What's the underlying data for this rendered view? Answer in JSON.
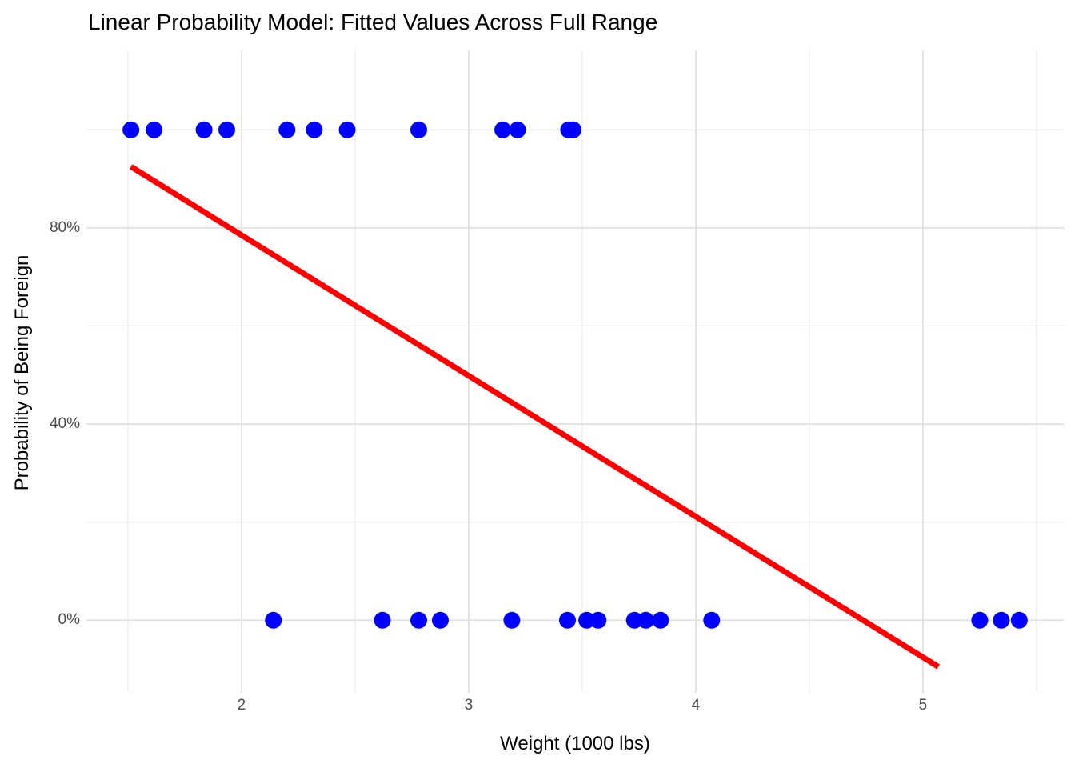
{
  "chart_data": {
    "type": "scatter",
    "title": "Linear Probability Model: Fitted Values Across Full Range",
    "xlabel": "Weight (1000 lbs)",
    "ylabel": "Probability of Being Foreign",
    "xlim": [
      1.317,
      5.62
    ],
    "ylim": [
      -0.148,
      1.162
    ],
    "grid": true,
    "legend": false,
    "background": "#ffffff",
    "grid_major_color": "#e3e3e3",
    "grid_minor_color": "#ececec",
    "tick_text_color": "#4d4d4d",
    "x_major_ticks": [
      {
        "value": 2,
        "label": "2"
      },
      {
        "value": 3,
        "label": "3"
      },
      {
        "value": 4,
        "label": "4"
      },
      {
        "value": 5,
        "label": "5"
      }
    ],
    "x_minor_ticks": [
      1.5,
      2.5,
      3.5,
      4.5,
      5.5
    ],
    "y_major_ticks": [
      {
        "value": 0.0,
        "label": "0%"
      },
      {
        "value": 0.4,
        "label": "40%"
      },
      {
        "value": 0.8,
        "label": "80%"
      }
    ],
    "y_minor_ticks": [
      0.2,
      0.6,
      1.0
    ],
    "series": [
      {
        "name": "observations",
        "kind": "points",
        "color": "#0000ff",
        "point_radius": 10.5,
        "points": [
          {
            "x": 1.513,
            "y": 1
          },
          {
            "x": 1.615,
            "y": 1
          },
          {
            "x": 1.835,
            "y": 1
          },
          {
            "x": 1.935,
            "y": 1
          },
          {
            "x": 2.2,
            "y": 1
          },
          {
            "x": 2.32,
            "y": 1
          },
          {
            "x": 2.465,
            "y": 1
          },
          {
            "x": 2.78,
            "y": 1
          },
          {
            "x": 3.15,
            "y": 1
          },
          {
            "x": 3.215,
            "y": 1
          },
          {
            "x": 3.44,
            "y": 1
          },
          {
            "x": 3.46,
            "y": 1
          },
          {
            "x": 2.14,
            "y": 0
          },
          {
            "x": 2.62,
            "y": 0
          },
          {
            "x": 2.78,
            "y": 0
          },
          {
            "x": 2.875,
            "y": 0
          },
          {
            "x": 3.19,
            "y": 0
          },
          {
            "x": 3.435,
            "y": 0
          },
          {
            "x": 3.52,
            "y": 0
          },
          {
            "x": 3.57,
            "y": 0
          },
          {
            "x": 3.73,
            "y": 0
          },
          {
            "x": 3.78,
            "y": 0
          },
          {
            "x": 3.845,
            "y": 0
          },
          {
            "x": 4.07,
            "y": 0
          },
          {
            "x": 5.25,
            "y": 0
          },
          {
            "x": 5.345,
            "y": 0
          },
          {
            "x": 5.424,
            "y": 0
          }
        ]
      },
      {
        "name": "fitted-line",
        "kind": "line",
        "color": "#ff0000",
        "stroke_width": 7,
        "x": [
          1.513,
          5.068
        ],
        "y": [
          0.925,
          -0.095
        ]
      }
    ]
  }
}
